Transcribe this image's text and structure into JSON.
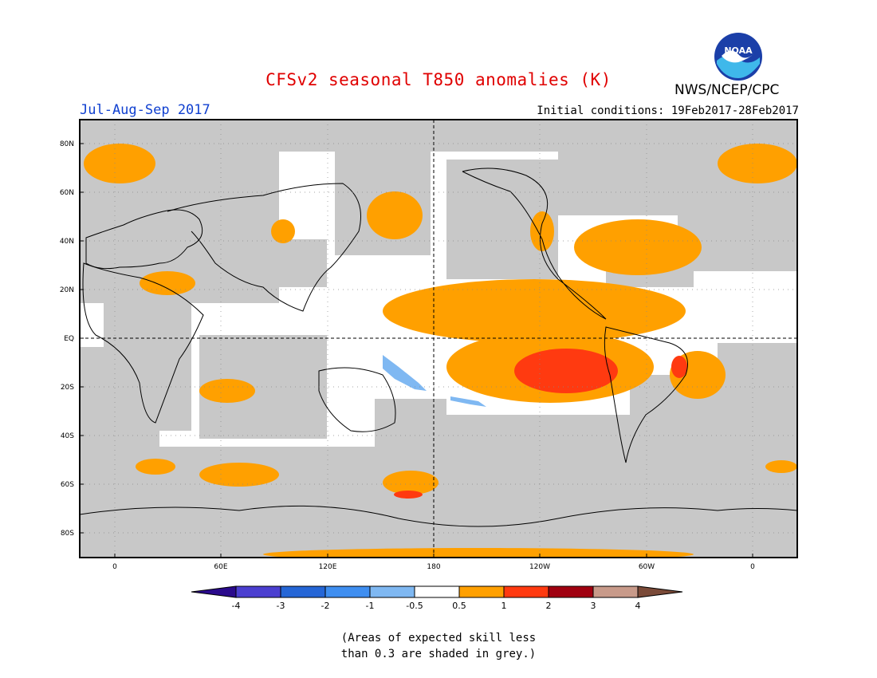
{
  "title": "CFSv2 seasonal T850 anomalies (K)",
  "season": "Jul-Aug-Sep 2017",
  "initial_conditions": "Initial conditions: 19Feb2017-28Feb2017",
  "agency": "NWS/NCEP/CPC",
  "logo_text": "NOAA",
  "lat_labels": [
    "80N",
    "60N",
    "40N",
    "20N",
    "EQ",
    "20S",
    "40S",
    "60S",
    "80S"
  ],
  "lon_labels": [
    "0",
    "60E",
    "120E",
    "180",
    "120W",
    "60W",
    "0"
  ],
  "colorbar": {
    "labels": [
      "-4",
      "-3",
      "-2",
      "-1",
      "-0.5",
      "0.5",
      "1",
      "2",
      "3",
      "4"
    ],
    "colors": [
      "#2a0a8c",
      "#4b3fd0",
      "#2566d6",
      "#3f8ef0",
      "#7fb8f2",
      "#ffffff",
      "#ffa000",
      "#ff3a10",
      "#a00010",
      "#c89a8a",
      "#7a4a38"
    ]
  },
  "colors": {
    "skill_grey": "#c8c8c8",
    "title_red": "#e00000",
    "season_blue": "#1040d0"
  },
  "note_lines": [
    "(Areas of expected skill less",
    "than 0.3 are shaded in grey.)"
  ]
}
